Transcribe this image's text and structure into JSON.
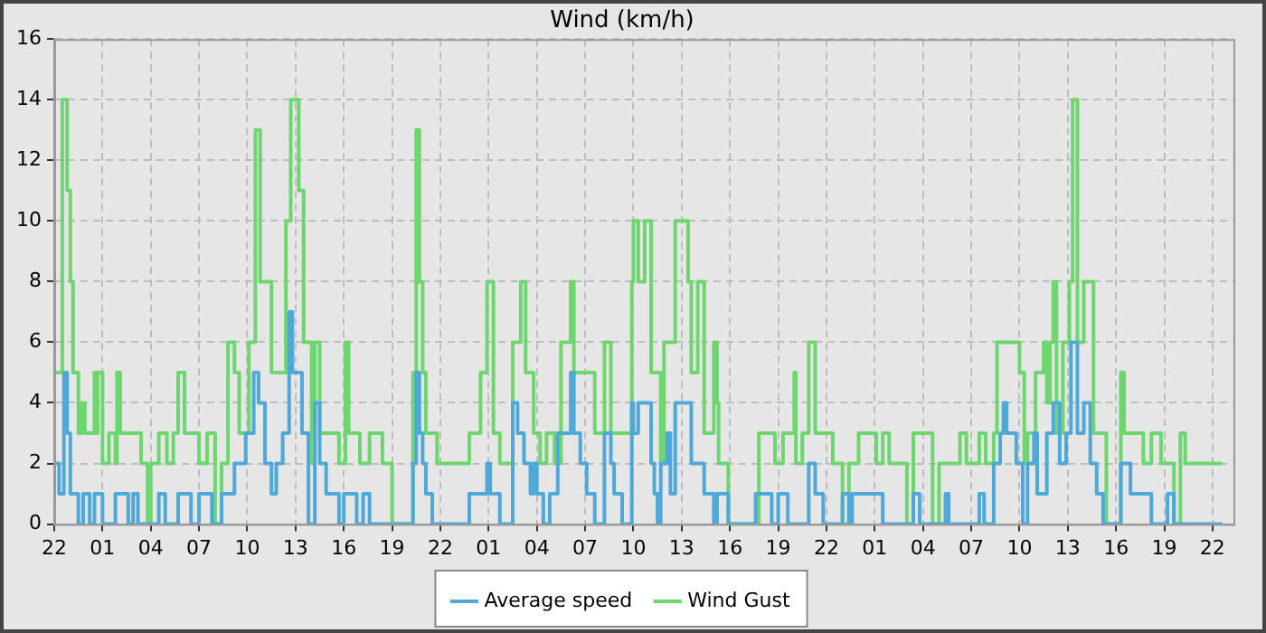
{
  "chart_data": {
    "type": "step",
    "title": "Wind (km/h)",
    "xlim": [
      "--01-01T22:00",
      "--01-04T23:18"
    ],
    "xticks": [
      {
        "value": "--01-01T22:00",
        "label": "22"
      },
      {
        "value": "--01-02T01:00",
        "label": "01"
      },
      {
        "value": "--01-02T04:00",
        "label": "04"
      },
      {
        "value": "--01-02T07:00",
        "label": "07"
      },
      {
        "value": "--01-02T10:00",
        "label": "10"
      },
      {
        "value": "--01-02T13:00",
        "label": "13"
      },
      {
        "value": "--01-02T16:00",
        "label": "16"
      },
      {
        "value": "--01-02T19:00",
        "label": "19"
      },
      {
        "value": "--01-02T22:00",
        "label": "22"
      },
      {
        "value": "--01-03T01:00",
        "label": "01"
      },
      {
        "value": "--01-03T04:00",
        "label": "04"
      },
      {
        "value": "--01-03T07:00",
        "label": "07"
      },
      {
        "value": "--01-03T10:00",
        "label": "10"
      },
      {
        "value": "--01-03T13:00",
        "label": "13"
      },
      {
        "value": "--01-03T16:00",
        "label": "16"
      },
      {
        "value": "--01-03T19:00",
        "label": "19"
      },
      {
        "value": "--01-03T22:00",
        "label": "22"
      },
      {
        "value": "--01-04T01:00",
        "label": "01"
      },
      {
        "value": "--01-04T04:00",
        "label": "04"
      },
      {
        "value": "--01-04T07:00",
        "label": "07"
      },
      {
        "value": "--01-04T10:00",
        "label": "10"
      },
      {
        "value": "--01-04T13:00",
        "label": "13"
      },
      {
        "value": "--01-04T16:00",
        "label": "16"
      },
      {
        "value": "--01-04T19:00",
        "label": "19"
      },
      {
        "value": "--01-04T22:00",
        "label": "22"
      }
    ],
    "ylim": [
      0,
      16
    ],
    "yticks": [
      0,
      2,
      4,
      6,
      8,
      10,
      12,
      14,
      16
    ],
    "grid": true,
    "legend": "bottom",
    "marker": "none",
    "line_style": "solid",
    "series": [
      {
        "name": "Average speed",
        "color": "#4ea9d9",
        "x": [
          "--01-01T22:00",
          "--01-01T22:18",
          "--01-01T22:36",
          "--01-01T22:48",
          "--01-01T23:00",
          "--01-01T23:30",
          "--01-01T23:48",
          "--01-02T00:12",
          "--01-02T00:30",
          "--01-02T01:00",
          "--01-02T01:48",
          "--01-02T02:36",
          "--01-02T02:54",
          "--01-02T03:12",
          "--01-02T04:30",
          "--01-02T04:54",
          "--01-02T05:42",
          "--01-02T06:30",
          "--01-02T07:00",
          "--01-02T07:48",
          "--01-02T08:24",
          "--01-02T09:12",
          "--01-02T09:54",
          "--01-02T10:24",
          "--01-02T10:42",
          "--01-02T11:06",
          "--01-02T11:30",
          "--01-02T11:48",
          "--01-02T12:12",
          "--01-02T12:36",
          "--01-02T12:48",
          "--01-02T13:24",
          "--01-02T13:48",
          "--01-02T14:12",
          "--01-02T14:30",
          "--01-02T14:54",
          "--01-02T15:42",
          "--01-02T16:00",
          "--01-02T16:48",
          "--01-02T17:12",
          "--01-02T17:36",
          "--01-02T20:18",
          "--01-02T20:30",
          "--01-02T20:42",
          "--01-02T20:54",
          "--01-02T21:06",
          "--01-02T21:30",
          "--01-02T23:48",
          "--01-03T00:54",
          "--01-03T01:06",
          "--01-03T01:42",
          "--01-03T02:30",
          "--01-03T02:48",
          "--01-03T03:12",
          "--01-03T03:36",
          "--01-03T03:48",
          "--01-03T04:00",
          "--01-03T04:24",
          "--01-03T04:48",
          "--01-03T05:18",
          "--01-03T06:06",
          "--01-03T06:18",
          "--01-03T06:42",
          "--01-03T07:06",
          "--01-03T07:36",
          "--01-03T08:12",
          "--01-03T08:36",
          "--01-03T08:48",
          "--01-03T09:18",
          "--01-03T09:54",
          "--01-03T10:00",
          "--01-03T10:18",
          "--01-03T11:06",
          "--01-03T11:18",
          "--01-03T11:30",
          "--01-03T11:42",
          "--01-03T12:06",
          "--01-03T12:18",
          "--01-03T12:36",
          "--01-03T13:36",
          "--01-03T14:24",
          "--01-03T15:00",
          "--01-03T15:12",
          "--01-03T15:54",
          "--01-03T17:36",
          "--01-03T18:36",
          "--01-03T19:00",
          "--01-03T19:36",
          "--01-03T20:54",
          "--01-03T21:18",
          "--01-03T21:48",
          "--01-03T23:00",
          "--01-03T23:24",
          "--01-03T23:36",
          "--01-04T01:30",
          "--01-04T03:24",
          "--01-04T03:48",
          "--01-04T05:24",
          "--01-04T05:36",
          "--01-04T07:30",
          "--01-04T07:48",
          "--01-04T08:24",
          "--01-04T08:48",
          "--01-04T09:00",
          "--01-04T09:12",
          "--01-04T09:48",
          "--01-04T10:12",
          "--01-04T10:30",
          "--01-04T10:54",
          "--01-04T11:06",
          "--01-04T11:42",
          "--01-04T12:06",
          "--01-04T12:30",
          "--01-04T12:54",
          "--01-04T13:12",
          "--01-04T13:36",
          "--01-04T14:00",
          "--01-04T14:24",
          "--01-04T14:48",
          "--01-04T15:12",
          "--01-04T16:18",
          "--01-04T16:54",
          "--01-04T18:12",
          "--01-04T19:12",
          "--01-04T19:36",
          "--01-04T22:36"
        ],
        "values": [
          2,
          1,
          5,
          3,
          1,
          0,
          1,
          0,
          1,
          0,
          1,
          0,
          1,
          0,
          1,
          0,
          1,
          0,
          1,
          0,
          1,
          2,
          3,
          5,
          4,
          2,
          1,
          2,
          3,
          7,
          5,
          3,
          0,
          4,
          2,
          1,
          0,
          1,
          0,
          1,
          0,
          2,
          5,
          3,
          2,
          1,
          0,
          1,
          2,
          1,
          0,
          4,
          3,
          2,
          1,
          2,
          1,
          0,
          1,
          3,
          5,
          3,
          2,
          1,
          0,
          3,
          2,
          1,
          0,
          4,
          3,
          4,
          2,
          1,
          0,
          2,
          3,
          1,
          4,
          2,
          1,
          0,
          1,
          0,
          1,
          0,
          1,
          0,
          2,
          1,
          0,
          1,
          0,
          1,
          0,
          1,
          0,
          1,
          0,
          1,
          0,
          2,
          3,
          4,
          3,
          2,
          0,
          2,
          3,
          1,
          3,
          4,
          2,
          3,
          6,
          3,
          4,
          2,
          1,
          0,
          2,
          1,
          0,
          1,
          0,
          0
        ]
      },
      {
        "name": "Wind Gust",
        "color": "#6ed66e",
        "x": [
          "--01-01T22:00",
          "--01-01T22:30",
          "--01-01T22:48",
          "--01-01T23:00",
          "--01-01T23:10",
          "--01-01T23:30",
          "--01-01T23:42",
          "--01-01T23:54",
          "--01-02T00:30",
          "--01-02T00:36",
          "--01-02T00:42",
          "--01-02T01:00",
          "--01-02T01:24",
          "--01-02T01:48",
          "--01-02T01:54",
          "--01-02T02:06",
          "--01-02T03:24",
          "--01-02T03:48",
          "--01-02T04:00",
          "--01-02T04:30",
          "--01-02T05:00",
          "--01-02T05:24",
          "--01-02T05:42",
          "--01-02T06:06",
          "--01-02T07:00",
          "--01-02T07:30",
          "--01-02T08:00",
          "--01-02T08:24",
          "--01-02T08:48",
          "--01-02T09:12",
          "--01-02T09:30",
          "--01-02T10:06",
          "--01-02T10:30",
          "--01-02T10:48",
          "--01-02T11:30",
          "--01-02T12:24",
          "--01-02T12:42",
          "--01-02T13:12",
          "--01-02T13:30",
          "--01-02T14:00",
          "--01-02T14:12",
          "--01-02T14:30",
          "--01-02T15:42",
          "--01-02T16:06",
          "--01-02T16:18",
          "--01-02T17:00",
          "--01-02T17:36",
          "--01-02T18:24",
          "--01-02T19:00",
          "--01-02T20:18",
          "--01-02T20:30",
          "--01-02T20:42",
          "--01-02T20:54",
          "--01-02T21:06",
          "--01-02T21:48",
          "--01-02T23:48",
          "--01-03T00:30",
          "--01-03T00:54",
          "--01-03T01:18",
          "--01-03T01:42",
          "--01-03T02:30",
          "--01-03T03:00",
          "--01-03T03:18",
          "--01-03T03:48",
          "--01-03T04:12",
          "--01-03T04:36",
          "--01-03T05:06",
          "--01-03T05:30",
          "--01-03T06:06",
          "--01-03T06:18",
          "--01-03T07:36",
          "--01-03T08:12",
          "--01-03T08:36",
          "--01-03T09:54",
          "--01-03T10:00",
          "--01-03T10:18",
          "--01-03T10:42",
          "--01-03T11:06",
          "--01-03T11:42",
          "--01-03T11:54",
          "--01-03T12:36",
          "--01-03T13:24",
          "--01-03T13:36",
          "--01-03T14:00",
          "--01-03T14:24",
          "--01-03T15:00",
          "--01-03T15:12",
          "--01-03T15:18",
          "--01-03T15:54",
          "--01-03T17:48",
          "--01-03T18:48",
          "--01-03T19:18",
          "--01-03T20:00",
          "--01-03T20:06",
          "--01-03T20:30",
          "--01-03T20:54",
          "--01-03T21:18",
          "--01-03T22:24",
          "--01-03T23:00",
          "--01-03T23:24",
          "--01-04T00:00",
          "--01-04T01:06",
          "--01-04T01:30",
          "--01-04T01:54",
          "--01-04T03:00",
          "--01-04T03:24",
          "--01-04T04:36",
          "--01-04T05:00",
          "--01-04T06:18",
          "--01-04T06:42",
          "--01-04T07:30",
          "--01-04T07:54",
          "--01-04T08:24",
          "--01-04T08:36",
          "--01-04T10:00",
          "--01-04T10:18",
          "--01-04T10:30",
          "--01-04T11:00",
          "--01-04T11:30",
          "--01-04T11:42",
          "--01-04T11:54",
          "--01-04T12:06",
          "--01-04T12:18",
          "--01-04T12:42",
          "--01-04T13:06",
          "--01-04T13:18",
          "--01-04T13:36",
          "--01-04T14:00",
          "--01-04T14:36",
          "--01-04T15:24",
          "--01-04T16:18",
          "--01-04T16:30",
          "--01-04T17:42",
          "--01-04T18:12",
          "--01-04T18:48",
          "--01-04T19:36",
          "--01-04T20:00",
          "--01-04T20:18",
          "--01-04T22:36"
        ],
        "values": [
          5,
          14,
          11,
          8,
          5,
          3,
          4,
          3,
          5,
          3,
          5,
          2,
          3,
          2,
          5,
          3,
          2,
          0,
          2,
          3,
          2,
          3,
          5,
          3,
          2,
          3,
          0,
          2,
          6,
          5,
          3,
          6,
          13,
          8,
          5,
          10,
          14,
          11,
          6,
          2,
          6,
          3,
          2,
          6,
          3,
          2,
          3,
          2,
          0,
          5,
          13,
          8,
          5,
          3,
          2,
          3,
          5,
          8,
          3,
          2,
          6,
          8,
          5,
          3,
          2,
          3,
          2,
          6,
          8,
          5,
          3,
          6,
          3,
          8,
          10,
          8,
          10,
          5,
          2,
          6,
          10,
          8,
          5,
          8,
          3,
          6,
          4,
          2,
          0,
          3,
          2,
          3,
          5,
          2,
          3,
          6,
          3,
          2,
          0,
          2,
          3,
          2,
          3,
          2,
          0,
          3,
          0,
          2,
          3,
          2,
          3,
          2,
          3,
          6,
          5,
          2,
          3,
          5,
          6,
          4,
          6,
          8,
          3,
          6,
          8,
          14,
          6,
          8,
          3,
          0,
          5,
          3,
          2,
          3,
          2,
          0,
          3,
          2,
          2
        ]
      }
    ]
  }
}
